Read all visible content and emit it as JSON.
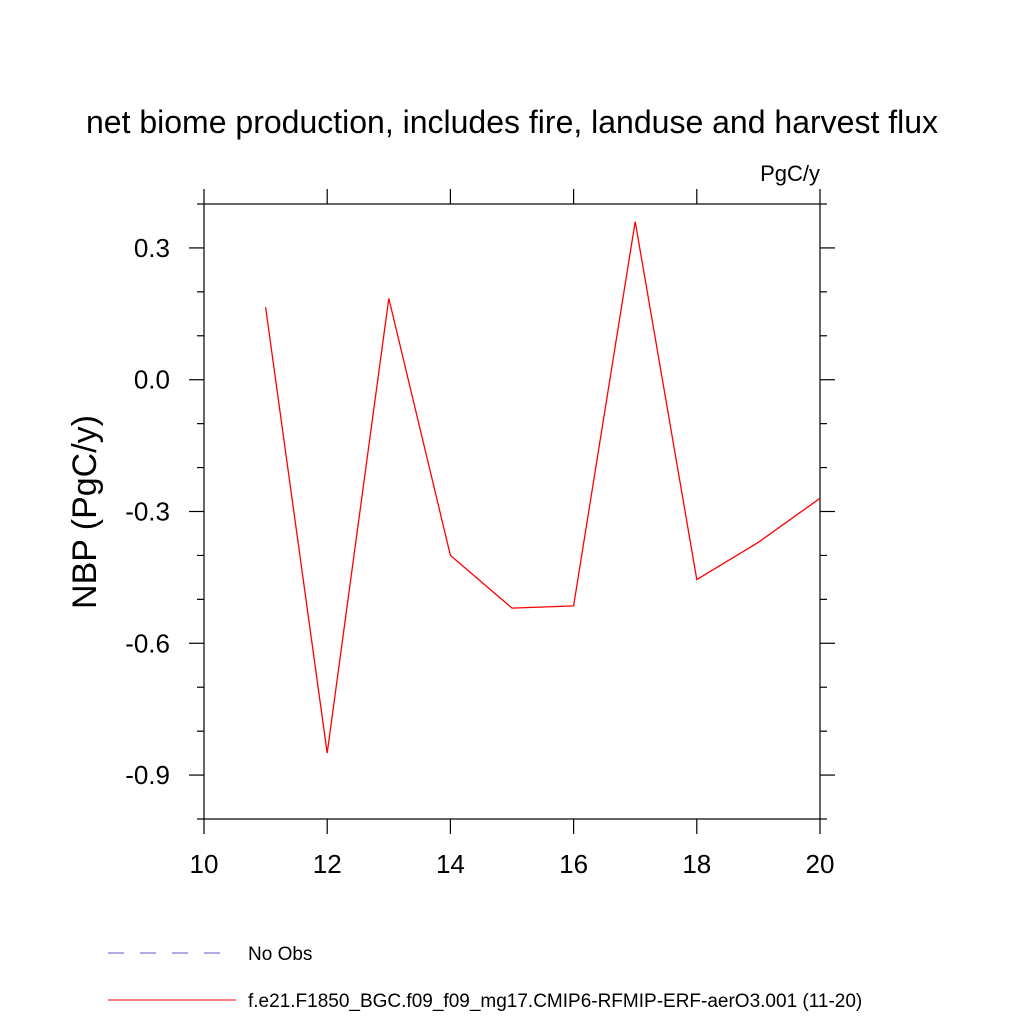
{
  "chart_data": {
    "type": "line",
    "title": "net biome production, includes fire, landuse and harvest flux",
    "units_label": "PgC/y",
    "ylabel": "NBP  (PgC/y)",
    "xlabel": "",
    "xlim": [
      10,
      20
    ],
    "ylim": [
      -1.0,
      0.4
    ],
    "x_ticks": [
      10,
      12,
      14,
      16,
      18,
      20
    ],
    "x_tick_labels": [
      "10",
      "12",
      "14",
      "16",
      "18",
      "20"
    ],
    "y_ticks": [
      0.3,
      0.0,
      -0.3,
      -0.6,
      -0.9
    ],
    "y_tick_labels": [
      "0.3",
      "0.0",
      "-0.3",
      "-0.6",
      "-0.9"
    ],
    "grid": false,
    "legend_position": "bottom",
    "series": [
      {
        "name": "f.e21.F1850_BGC.f09_f09_mg17.CMIP6-RFMIP-ERF-aerO3.001 (11-20)",
        "color": "#ff0000",
        "dash": "solid",
        "x": [
          11,
          12,
          13,
          14,
          15,
          16,
          17,
          18,
          19,
          20
        ],
        "values": [
          0.165,
          -0.85,
          0.185,
          -0.4,
          -0.52,
          -0.515,
          0.36,
          -0.455,
          -0.37,
          -0.27
        ]
      }
    ],
    "legend": [
      {
        "label": "No Obs",
        "color": "#6a5acd",
        "dash": "dashed"
      },
      {
        "label": "f.e21.F1850_BGC.f09_f09_mg17.CMIP6-RFMIP-ERF-aerO3.001 (11-20)",
        "color": "#ff0000",
        "dash": "solid"
      }
    ]
  }
}
